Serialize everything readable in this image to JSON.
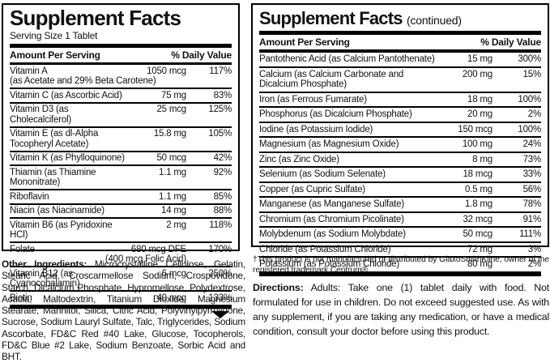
{
  "left_panel": {
    "title": "Supplement Facts",
    "serving_size": "Serving Size 1 Tablet",
    "columns": {
      "amount": "Amount Per Serving",
      "daily_value": "% Daily Value"
    },
    "rows": [
      {
        "name": "Vitamin A",
        "name2": "(as Acetate and 29% Beta Carotene)",
        "amount": "1050 mcg",
        "dv": "117%"
      },
      {
        "name": "Vitamin C (as Ascorbic Acid)",
        "amount": "75 mg",
        "dv": "83%"
      },
      {
        "name": "Vitamin D3 (as Cholecalciferol)",
        "amount": "25 mcg",
        "dv": "125%"
      },
      {
        "name": "Vitamin E (as dl-Alpha Tocopheryl Acetate)",
        "amount": "15.8 mg",
        "dv": "105%"
      },
      {
        "name": "Vitamin K (as Phylloquinone)",
        "amount": "50 mcg",
        "dv": "42%"
      },
      {
        "name": "Thiamin (as Thiamine Mononitrate)",
        "amount": "1.1 mg",
        "dv": "92%"
      },
      {
        "name": "Riboflavin",
        "amount": "1.1 mg",
        "dv": "85%"
      },
      {
        "name": "Niacin (as Niacinamide)",
        "amount": "14 mg",
        "dv": "88%"
      },
      {
        "name": "Vitamin B6 (as Pyridoxine HCl)",
        "amount": "2 mg",
        "dv": "118%"
      },
      {
        "name": "Folate",
        "amount": "680 mcg DFE",
        "amount2": "(400 mcg Folic Acid)",
        "dv": "170%"
      },
      {
        "name": "Vitamin B12 (as Cyanocobalamin)",
        "amount": "6 mcg",
        "dv": "250%"
      },
      {
        "name": "Biotin",
        "amount": "40 mcg",
        "dv": "133%"
      }
    ]
  },
  "right_panel": {
    "title": "Supplement Facts",
    "continued": "(continued)",
    "columns": {
      "amount": "Amount Per Serving",
      "daily_value": "% Daily Value"
    },
    "rows": [
      {
        "name": "Pantothenic Acid (as Calcium Pantothenate)",
        "amount": "15 mg",
        "dv": "300%"
      },
      {
        "name": "Calcium (as Calcium Carbonate and Dicalcium Phosphate)",
        "amount": "200 mg",
        "dv": "15%"
      },
      {
        "name": "Iron (as Ferrous Fumarate)",
        "amount": "18 mg",
        "dv": "100%"
      },
      {
        "name": "Phosphorus (as Dicalcium Phosphate)",
        "amount": "20 mg",
        "dv": "2%"
      },
      {
        "name": "Iodine (as Potassium Iodide)",
        "amount": "150 mcg",
        "dv": "100%"
      },
      {
        "name": "Magnesium (as Magnesium Oxide)",
        "amount": "100 mg",
        "dv": "24%"
      },
      {
        "name": "Zinc (as Zinc Oxide)",
        "amount": "8 mg",
        "dv": "73%"
      },
      {
        "name": "Selenium (as Sodium Selenate)",
        "amount": "18 mcg",
        "dv": "33%"
      },
      {
        "name": "Copper (as Cupric Sulfate)",
        "amount": "0.5 mg",
        "dv": "56%"
      },
      {
        "name": "Manganese (as Manganese Sulfate)",
        "amount": "1.8 mg",
        "dv": "78%"
      },
      {
        "name": "Chromium (as Chromium Picolinate)",
        "amount": "32 mcg",
        "dv": "91%"
      },
      {
        "name": "Molybdenum (as Sodium Molybdate)",
        "amount": "50 mcg",
        "dv": "111%"
      },
      {
        "name": "Chloride (as Potassium Chloride)",
        "amount": "72 mg",
        "dv": "3%"
      },
      {
        "name": "Potassium (as Potassium Chloride)",
        "amount": "80 mg",
        "dv": "2%"
      }
    ]
  },
  "other_ingredients": {
    "label": "Other Ingredients:",
    "text": "Microcrystalline Cellulose, Gelatin, Stearic Acid, Croscarmellose Sodium, Crospovidone, Starch, Dicalcium Phosphate, Hypromellose, Polydextrose, Acacia, Maltodextrin, Titanium Dioxide, Magnesium Stearate, Mannitol, Silica, Citric Acid, Polyvinylpyrrolidone, Sucrose, Sodium Lauryl Sulfate, Talc, Triglycerides, Sodium Ascorbate, FD&C Red #40 Lake, Glucose, Tocopherols, FD&C Blue #2 Lake, Sodium Benzoate, Sorbic Acid and BHT."
  },
  "footnote": "†This product is not manufactured or distributed by GlaxoSmithKline, owner of the registered trademark Centrum® .",
  "directions": {
    "label": "Directions:",
    "text": "Adults: Take one (1) tablet daily with food. Not formulated for use in children. Do not exceed suggested use. As with any supplement, if you are taking any medication, or have a medical condition, consult your doctor before using this product."
  },
  "colors": {
    "ink": "#111111",
    "paper": "#ffffff",
    "rule": "#000000"
  }
}
